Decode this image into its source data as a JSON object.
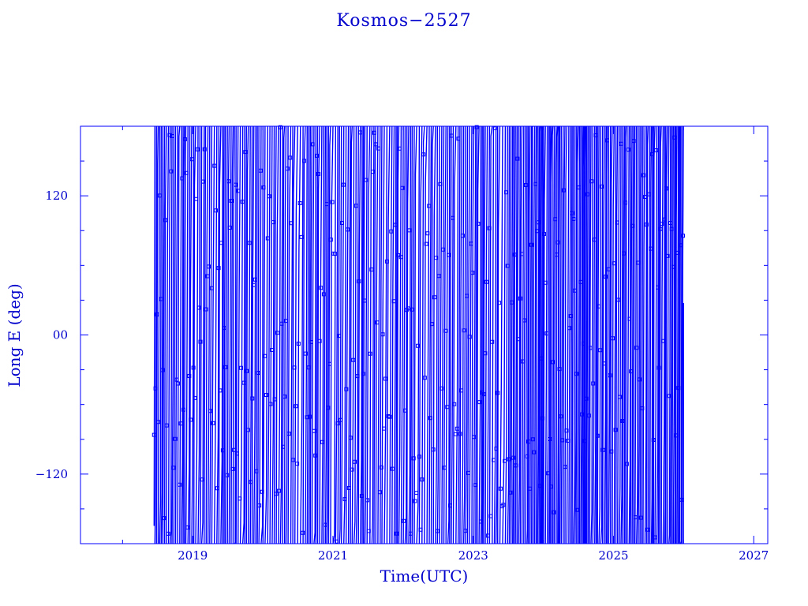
{
  "chart_data": {
    "type": "line",
    "title": "Kosmos−2527",
    "xlabel": "Time(UTC)",
    "ylabel": "Long E (deg)",
    "xlim": [
      2017.4,
      2027.2
    ],
    "ylim": [
      -180,
      180
    ],
    "x_ticks": [
      2019,
      2021,
      2023,
      2025,
      2027
    ],
    "x_tick_labels": [
      "2019",
      "2021",
      "2023",
      "2025",
      "2027"
    ],
    "y_ticks": [
      -120,
      0,
      120
    ],
    "y_tick_labels": [
      "−120",
      "00",
      "120"
    ],
    "grid": false,
    "color": "#0000ff",
    "series": [
      {
        "x_start": 2018.45,
        "x_end": 2026.0,
        "description_values": "longitude drifts continuously, wrapping between -180 and 180 deg; repeated full revolutions",
        "segments_per_year_early": 34,
        "segments_per_year_late": 48
      }
    ]
  }
}
